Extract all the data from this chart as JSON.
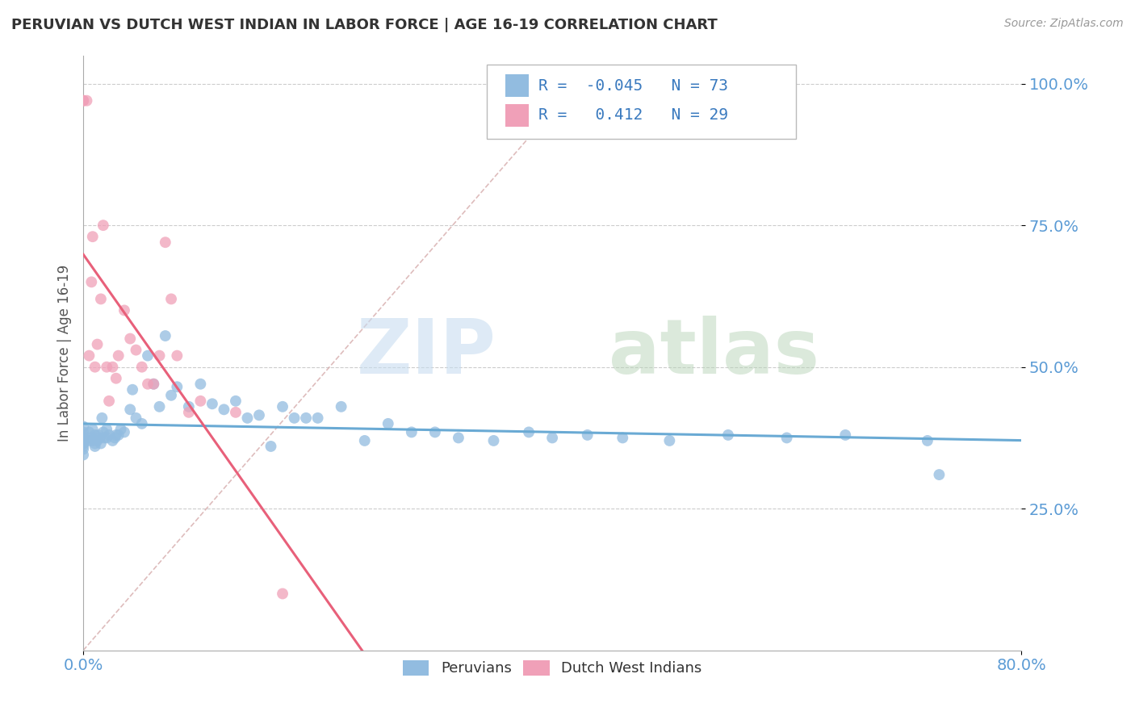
{
  "title": "PERUVIAN VS DUTCH WEST INDIAN IN LABOR FORCE | AGE 16-19 CORRELATION CHART",
  "source_text": "Source: ZipAtlas.com",
  "ylabel": "In Labor Force | Age 16-19",
  "xmin": 0.0,
  "xmax": 0.8,
  "ymin": 0.0,
  "ymax": 1.05,
  "yticks": [
    0.25,
    0.5,
    0.75,
    1.0
  ],
  "ytick_labels": [
    "25.0%",
    "50.0%",
    "75.0%",
    "100.0%"
  ],
  "xtick_labels": [
    "0.0%",
    "80.0%"
  ],
  "peruvian_color": "#92bce0",
  "dutch_color": "#f0a0b8",
  "trendline_peruvian_color": "#6aaad4",
  "trendline_dutch_color": "#e8607a",
  "peruvian_R": -0.045,
  "peruvian_N": 73,
  "dutch_R": 0.412,
  "dutch_N": 29,
  "legend_label_peruvian": "Peruvians",
  "legend_label_dutch": "Dutch West Indians",
  "peruvian_scatter_x": [
    0.0,
    0.0,
    0.0,
    0.0,
    0.0,
    0.0,
    0.0,
    0.0,
    0.0,
    0.0,
    0.005,
    0.005,
    0.007,
    0.008,
    0.008,
    0.01,
    0.01,
    0.01,
    0.012,
    0.013,
    0.014,
    0.015,
    0.016,
    0.017,
    0.018,
    0.02,
    0.02,
    0.022,
    0.025,
    0.027,
    0.028,
    0.03,
    0.032,
    0.035,
    0.04,
    0.042,
    0.045,
    0.05,
    0.055,
    0.06,
    0.065,
    0.07,
    0.075,
    0.08,
    0.09,
    0.1,
    0.11,
    0.12,
    0.13,
    0.14,
    0.15,
    0.16,
    0.17,
    0.18,
    0.19,
    0.2,
    0.22,
    0.24,
    0.26,
    0.28,
    0.3,
    0.32,
    0.35,
    0.38,
    0.4,
    0.43,
    0.46,
    0.5,
    0.55,
    0.6,
    0.65,
    0.72,
    0.73
  ],
  "peruvian_scatter_y": [
    0.385,
    0.375,
    0.365,
    0.395,
    0.355,
    0.345,
    0.38,
    0.365,
    0.37,
    0.36,
    0.385,
    0.37,
    0.375,
    0.39,
    0.37,
    0.38,
    0.365,
    0.36,
    0.37,
    0.38,
    0.375,
    0.365,
    0.41,
    0.385,
    0.375,
    0.39,
    0.375,
    0.38,
    0.37,
    0.375,
    0.38,
    0.38,
    0.39,
    0.385,
    0.425,
    0.46,
    0.41,
    0.4,
    0.52,
    0.47,
    0.43,
    0.555,
    0.45,
    0.465,
    0.43,
    0.47,
    0.435,
    0.425,
    0.44,
    0.41,
    0.415,
    0.36,
    0.43,
    0.41,
    0.41,
    0.41,
    0.43,
    0.37,
    0.4,
    0.385,
    0.385,
    0.375,
    0.37,
    0.385,
    0.375,
    0.38,
    0.375,
    0.37,
    0.38,
    0.375,
    0.38,
    0.37,
    0.31
  ],
  "dutch_scatter_x": [
    0.0,
    0.0,
    0.003,
    0.005,
    0.007,
    0.008,
    0.01,
    0.012,
    0.015,
    0.017,
    0.02,
    0.022,
    0.025,
    0.028,
    0.03,
    0.035,
    0.04,
    0.045,
    0.05,
    0.055,
    0.06,
    0.065,
    0.07,
    0.075,
    0.08,
    0.09,
    0.1,
    0.13,
    0.17
  ],
  "dutch_scatter_y": [
    0.97,
    0.97,
    0.97,
    0.52,
    0.65,
    0.73,
    0.5,
    0.54,
    0.62,
    0.75,
    0.5,
    0.44,
    0.5,
    0.48,
    0.52,
    0.6,
    0.55,
    0.53,
    0.5,
    0.47,
    0.47,
    0.52,
    0.72,
    0.62,
    0.52,
    0.42,
    0.44,
    0.42,
    0.1
  ],
  "diag_line_x": [
    0.0,
    0.42
  ],
  "diag_line_y": [
    0.0,
    1.0
  ]
}
